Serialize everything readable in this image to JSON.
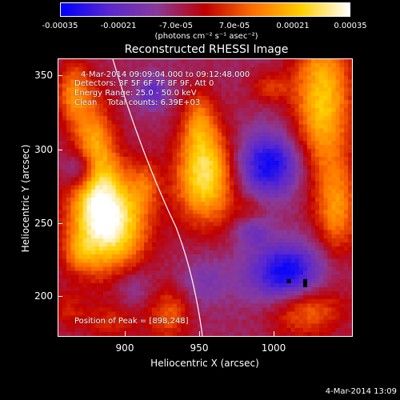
{
  "colorbar": {
    "tick_labels": [
      "-0.00035",
      "-0.00021",
      "-7.0e-05",
      "7.0e-05",
      "0.00021",
      "0.00035"
    ],
    "units": "(photons cm⁻² s⁻¹ asec⁻²)",
    "colors": [
      "#0000ff",
      "#5a28d0",
      "#8a3a9a",
      "#c00000",
      "#ff7000",
      "#ffd000",
      "#ffffff"
    ]
  },
  "plot": {
    "title": "Reconstructed RHESSI Image",
    "time_range": "4-Mar-2014 09:09:04.000 to 09:12:48.000",
    "detectors": "Detectors: 3F 5F 6F 7F 8F 9F, Att 0",
    "energy": "Energy Range: 25.0 - 50.0 keV",
    "algorithm": "Clean    Total counts: 6.39E+03",
    "peak": "Position of Peak = [898,248]",
    "xlabel": "Heliocentric X (arcsec)",
    "ylabel": "Heliocentric Y (arcsec)",
    "x_ticks": [
      "900",
      "950",
      "1000"
    ],
    "y_ticks": [
      "350",
      "300",
      "250",
      "200"
    ],
    "x_range": [
      860,
      1045
    ],
    "y_range": [
      170,
      365
    ]
  },
  "footer": {
    "date": "4-Mar-2014 13:09"
  }
}
